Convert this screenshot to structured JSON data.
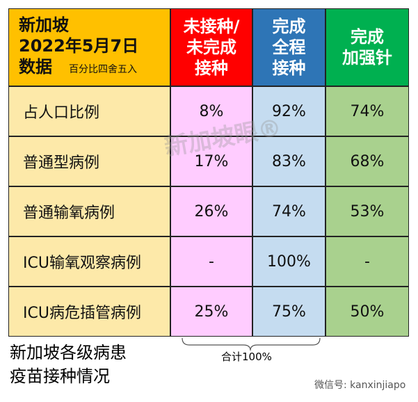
{
  "header": {
    "title_lines": [
      "新加坡",
      "2022年5月7日",
      "数据"
    ],
    "note": "百分比四舍五入",
    "columns": [
      [
        "未接种/",
        "未完成",
        "接种"
      ],
      [
        "完成",
        "全程",
        "接种"
      ],
      [
        "完成",
        "加强针"
      ]
    ]
  },
  "table": {
    "rows": [
      [
        "占人口比例",
        "8%",
        "92%",
        "74%"
      ],
      [
        "普通型病例",
        "17%",
        "83%",
        "68%"
      ],
      [
        "普通输氧病例",
        "26%",
        "74%",
        "53%"
      ],
      [
        "ICU输氧观察病例",
        "-",
        "100%",
        "-"
      ],
      [
        "ICU病危插管病例",
        "25%",
        "75%",
        "50%"
      ]
    ]
  },
  "brace_label": "合计100%",
  "caption_lines": [
    "新加坡各级病患",
    "疫苗接种情况"
  ],
  "watermark": "新加坡眼®",
  "footer": "微信号: kanxinjiapo"
}
